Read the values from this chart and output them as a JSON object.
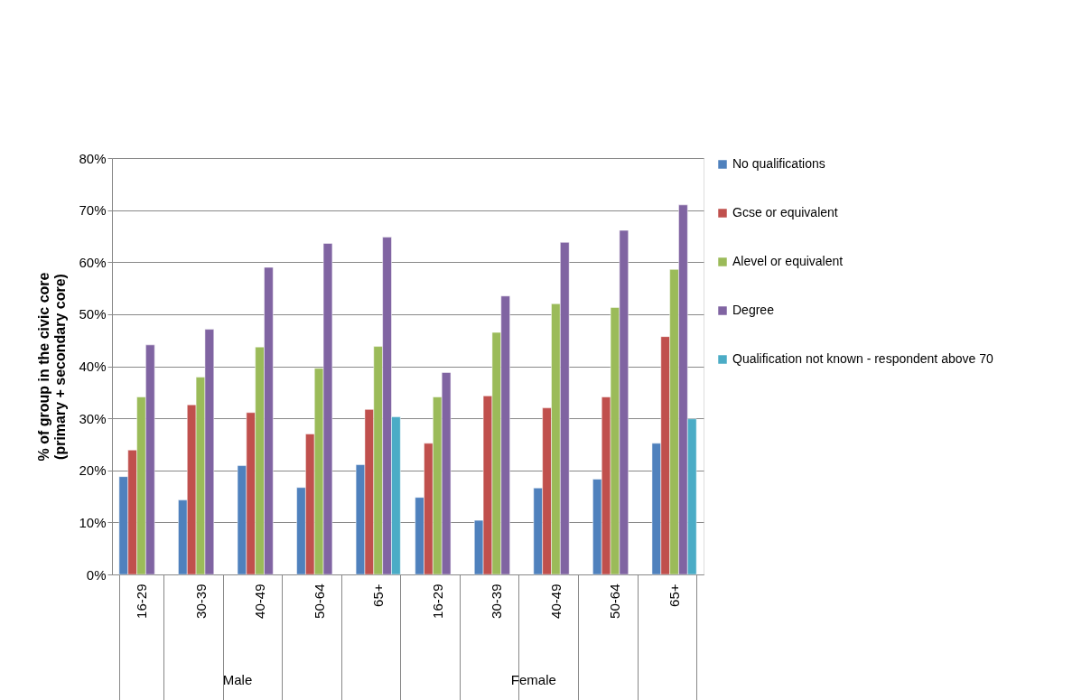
{
  "chart_data": {
    "type": "bar",
    "ylabel": "% of group in the civic core (primary + secondary core)",
    "categories": [
      "16-29",
      "30-39",
      "40-49",
      "50-64",
      "65+",
      "16-29",
      "30-39",
      "40-49",
      "50-64",
      "65+"
    ],
    "series": [
      {
        "name": "No qualifications",
        "color": "#4f81bd",
        "values": [
          18.8,
          14.3,
          20.9,
          16.7,
          21.1,
          14.8,
          10.4,
          16.6,
          18.3,
          25.2
        ]
      },
      {
        "name": "Gcse or equivalent",
        "color": "#c0504d",
        "values": [
          23.9,
          32.6,
          31.1,
          27.0,
          31.7,
          25.2,
          34.3,
          32.0,
          34.1,
          45.7
        ]
      },
      {
        "name": "Alevel or equivalent",
        "color": "#9bbb59",
        "values": [
          34.1,
          37.9,
          43.7,
          39.6,
          43.8,
          34.1,
          46.5,
          52.0,
          51.3,
          58.6
        ]
      },
      {
        "name": "Degree",
        "color": "#8064a2",
        "values": [
          44.1,
          47.1,
          59.0,
          63.6,
          64.8,
          38.8,
          53.5,
          63.8,
          66.1,
          71.0
        ]
      },
      {
        "name": "Qualification not known - respondent above 70",
        "color": "#4bacc6",
        "values": [
          null,
          null,
          null,
          null,
          30.3,
          null,
          null,
          null,
          null,
          29.9
        ]
      }
    ],
    "annotations": [
      "Male",
      "Female"
    ],
    "ylim": [
      0,
      80
    ],
    "yticks": [
      {
        "value": 0,
        "label": "0%"
      },
      {
        "value": 10,
        "label": "10%"
      },
      {
        "value": 20,
        "label": "20%"
      },
      {
        "value": 30,
        "label": "30%"
      },
      {
        "value": 40,
        "label": "40%"
      },
      {
        "value": 50,
        "label": "50%"
      },
      {
        "value": 60,
        "label": "60%"
      },
      {
        "value": 70,
        "label": "70%"
      },
      {
        "value": 80,
        "label": "80%"
      }
    ],
    "grid": "y",
    "legend": "right"
  }
}
